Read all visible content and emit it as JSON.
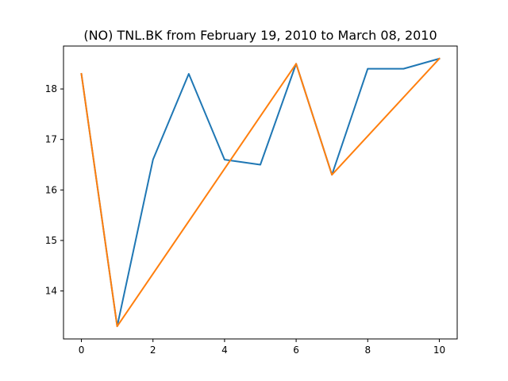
{
  "chart_data": {
    "type": "line",
    "title": "(NO) TNL.BK from February 19, 2010 to March 08, 2010",
    "xlabel": "",
    "ylabel": "",
    "x": [
      0,
      1,
      2,
      3,
      4,
      5,
      6,
      7,
      8,
      9,
      10
    ],
    "xlim": [
      -0.5,
      10.5
    ],
    "ylim": [
      13.05,
      18.85
    ],
    "xticks": [
      "0",
      "2",
      "4",
      "6",
      "8",
      "10"
    ],
    "yticks": [
      "14",
      "15",
      "16",
      "17",
      "18"
    ],
    "grid": false,
    "series": [
      {
        "color": "#1f77b4",
        "points": [
          [
            0,
            18.3
          ],
          [
            1,
            13.3
          ],
          [
            2,
            16.6
          ],
          [
            3,
            18.3
          ],
          [
            4,
            16.6
          ],
          [
            5,
            16.5
          ],
          [
            6,
            18.5
          ],
          [
            7,
            16.3
          ],
          [
            8,
            18.4
          ],
          [
            9,
            18.4
          ],
          [
            10,
            18.6
          ]
        ]
      },
      {
        "color": "#ff7f0e",
        "points": [
          [
            0,
            18.3
          ],
          [
            1,
            13.3
          ],
          [
            6,
            18.5
          ],
          [
            7,
            16.3
          ],
          [
            10,
            18.6
          ]
        ]
      }
    ]
  }
}
